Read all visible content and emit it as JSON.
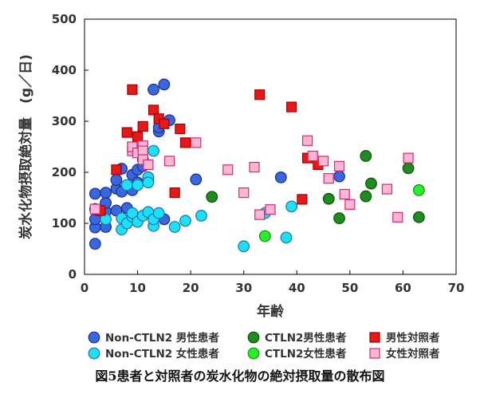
{
  "caption": "図5患者と対照者の炭水化物の絶対摂取量の散布図",
  "chart_data": {
    "type": "scatter",
    "title": "",
    "xlabel": "年齢",
    "ylabel": "炭水化物摂取絶対量　(g／日)",
    "xlim": [
      0,
      70
    ],
    "ylim": [
      0,
      500
    ],
    "x_ticks": [
      "0",
      "10",
      "20",
      "30",
      "40",
      "50",
      "60",
      "70"
    ],
    "y_ticks": [
      "0",
      "100",
      "200",
      "300",
      "400",
      "500"
    ],
    "grid": false,
    "legend_position": "bottom",
    "series": [
      {
        "name": "Non-CTLN2 男性患者",
        "marker": "circle",
        "color": "#3a66e0",
        "stroke": "#1a2f8a",
        "points": [
          [
            2,
            60
          ],
          [
            2,
            92
          ],
          [
            2,
            108
          ],
          [
            2,
            128
          ],
          [
            2,
            158
          ],
          [
            4,
            93
          ],
          [
            4,
            123
          ],
          [
            4,
            140
          ],
          [
            4,
            160
          ],
          [
            6,
            125
          ],
          [
            6,
            168
          ],
          [
            6,
            185
          ],
          [
            7,
            162
          ],
          [
            7,
            207
          ],
          [
            8,
            100
          ],
          [
            8,
            130
          ],
          [
            9,
            165
          ],
          [
            9,
            195
          ],
          [
            10,
            180
          ],
          [
            10,
            205
          ],
          [
            11,
            225
          ],
          [
            11,
            212
          ],
          [
            12,
            190
          ],
          [
            12,
            182
          ],
          [
            13,
            362
          ],
          [
            14,
            280
          ],
          [
            14,
            288
          ],
          [
            15,
            372
          ],
          [
            15,
            108
          ],
          [
            16,
            302
          ],
          [
            21,
            186
          ],
          [
            37,
            190
          ],
          [
            48,
            192
          ]
        ]
      },
      {
        "name": "Non-CTLN2 女性患者",
        "marker": "circle",
        "color": "#1ee0f5",
        "stroke": "#1a74b0",
        "points": [
          [
            4,
            108
          ],
          [
            7,
            88
          ],
          [
            7,
            110
          ],
          [
            8,
            100
          ],
          [
            8,
            175
          ],
          [
            9,
            113
          ],
          [
            9,
            120
          ],
          [
            10,
            103
          ],
          [
            10,
            175
          ],
          [
            11,
            115
          ],
          [
            12,
            190
          ],
          [
            12,
            180
          ],
          [
            12,
            122
          ],
          [
            13,
            95
          ],
          [
            13,
            108
          ],
          [
            13,
            242
          ],
          [
            14,
            120
          ],
          [
            17,
            93
          ],
          [
            19,
            105
          ],
          [
            22,
            115
          ],
          [
            30,
            55
          ],
          [
            34,
            120
          ],
          [
            38,
            72
          ],
          [
            39,
            133
          ]
        ]
      },
      {
        "name": "CTLN2男性患者",
        "marker": "circle",
        "color": "#1e8c1e",
        "stroke": "#0e4f0e",
        "points": [
          [
            24,
            152
          ],
          [
            46,
            148
          ],
          [
            48,
            110
          ],
          [
            53,
            153
          ],
          [
            53,
            232
          ],
          [
            54,
            178
          ],
          [
            61,
            208
          ],
          [
            63,
            112
          ]
        ]
      },
      {
        "name": "CTLN2女性患者",
        "marker": "circle",
        "color": "#28f028",
        "stroke": "#148c14",
        "points": [
          [
            34,
            75
          ],
          [
            63,
            165
          ]
        ]
      },
      {
        "name": "男性対照者",
        "marker": "square",
        "color": "#e81818",
        "stroke": "#a00000",
        "points": [
          [
            3,
            125
          ],
          [
            6,
            205
          ],
          [
            8,
            278
          ],
          [
            9,
            362
          ],
          [
            10,
            270
          ],
          [
            11,
            290
          ],
          [
            13,
            322
          ],
          [
            14,
            305
          ],
          [
            15,
            295
          ],
          [
            17,
            160
          ],
          [
            18,
            285
          ],
          [
            19,
            258
          ],
          [
            33,
            352
          ],
          [
            39,
            328
          ],
          [
            41,
            147
          ],
          [
            42,
            228
          ],
          [
            44,
            215
          ]
        ]
      },
      {
        "name": "女性対照者",
        "marker": "square",
        "color": "#ffb6d2",
        "stroke": "#d2287a",
        "points": [
          [
            2,
            128
          ],
          [
            9,
            242
          ],
          [
            9,
            250
          ],
          [
            10,
            238
          ],
          [
            11,
            252
          ],
          [
            11,
            242
          ],
          [
            11,
            225
          ],
          [
            12,
            215
          ],
          [
            16,
            222
          ],
          [
            21,
            258
          ],
          [
            27,
            205
          ],
          [
            30,
            160
          ],
          [
            32,
            210
          ],
          [
            33,
            117
          ],
          [
            35,
            127
          ],
          [
            42,
            262
          ],
          [
            43,
            232
          ],
          [
            45,
            222
          ],
          [
            46,
            188
          ],
          [
            48,
            212
          ],
          [
            49,
            157
          ],
          [
            50,
            137
          ],
          [
            57,
            167
          ],
          [
            59,
            112
          ],
          [
            61,
            228
          ]
        ]
      }
    ]
  }
}
